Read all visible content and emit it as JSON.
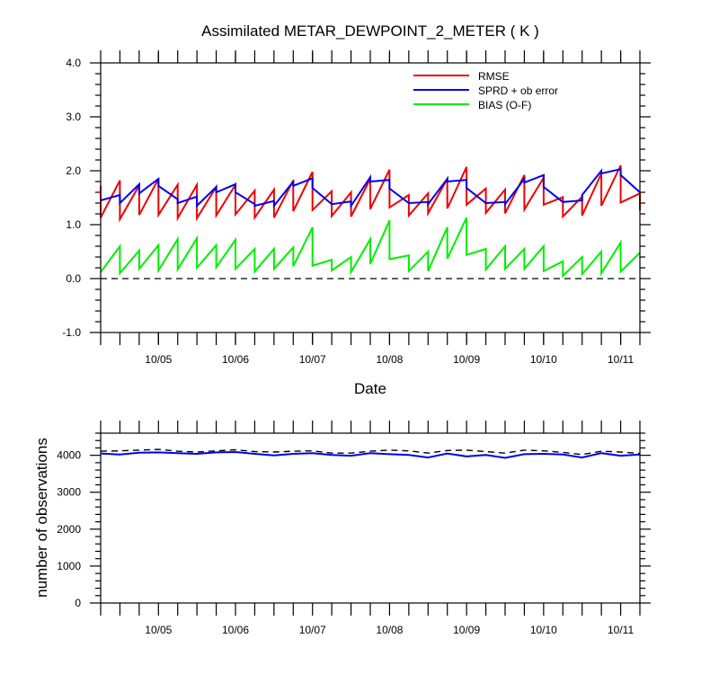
{
  "title": "Assimilated METAR_DEWPOINT_2_METER ( K )",
  "chart_data": [
    {
      "type": "line",
      "title": "Assimilated METAR_DEWPOINT_2_METER ( K )",
      "xlabel": "Date",
      "ylabel": "",
      "ylim": [
        -1.0,
        4.0
      ],
      "yticks": [
        "-1.0",
        "0.0",
        "1.0",
        "2.0",
        "3.0",
        "4.0"
      ],
      "xtick_labels": [
        "10/05",
        "10/06",
        "10/07",
        "10/08",
        "10/09",
        "10/10",
        "10/11"
      ],
      "xlim_days": [
        4.25,
        11.25
      ],
      "legend_position": "top-right",
      "reference_line": {
        "y": 0.0,
        "style": "dashed",
        "color": "#000000"
      },
      "series": [
        {
          "name": "RMSE",
          "color": "#ee0000",
          "x": [
            4.25,
            4.25,
            4.5,
            4.5,
            4.75,
            4.75,
            5.0,
            5.0,
            5.25,
            5.25,
            5.5,
            5.5,
            5.75,
            5.75,
            6.0,
            6.0,
            6.25,
            6.25,
            6.5,
            6.5,
            6.75,
            6.75,
            7.0,
            7.0,
            7.25,
            7.25,
            7.5,
            7.5,
            7.75,
            7.75,
            8.0,
            8.0,
            8.25,
            8.25,
            8.5,
            8.5,
            8.75,
            8.75,
            9.0,
            9.0,
            9.25,
            9.25,
            9.5,
            9.5,
            9.75,
            9.75,
            10.0,
            10.0,
            10.25,
            10.25,
            10.5,
            10.5,
            10.75,
            10.75,
            11.0,
            11.0,
            11.25,
            11.25
          ],
          "values": [
            1.72,
            1.13,
            1.82,
            1.1,
            1.73,
            1.18,
            1.85,
            1.18,
            1.74,
            1.12,
            1.74,
            1.12,
            1.7,
            1.17,
            1.74,
            1.19,
            1.63,
            1.13,
            1.65,
            1.13,
            1.82,
            1.25,
            1.98,
            1.27,
            1.62,
            1.16,
            1.6,
            1.15,
            1.85,
            1.29,
            2.02,
            1.32,
            1.55,
            1.17,
            1.58,
            1.21,
            1.85,
            1.3,
            2.07,
            1.37,
            1.67,
            1.22,
            1.65,
            1.21,
            1.92,
            1.28,
            1.87,
            1.37,
            1.51,
            1.15,
            1.52,
            1.17,
            1.95,
            1.35,
            2.1,
            1.41,
            1.58,
            1.26
          ]
        },
        {
          "name": "SPRD + ob error",
          "color": "#0000ee",
          "x": [
            4.25,
            4.25,
            4.5,
            4.5,
            4.75,
            4.75,
            5.0,
            5.0,
            5.25,
            5.25,
            5.5,
            5.5,
            5.75,
            5.75,
            6.0,
            6.0,
            6.25,
            6.25,
            6.5,
            6.5,
            6.75,
            6.75,
            7.0,
            7.0,
            7.25,
            7.25,
            7.5,
            7.5,
            7.75,
            7.75,
            8.0,
            8.0,
            8.25,
            8.25,
            8.5,
            8.5,
            8.75,
            8.75,
            9.0,
            9.0,
            9.25,
            9.25,
            9.5,
            9.5,
            9.75,
            9.75,
            10.0,
            10.0,
            10.25,
            10.25,
            10.5,
            10.5,
            10.75,
            10.75,
            11.0,
            11.0,
            11.25
          ],
          "values": [
            1.45,
            1.45,
            1.55,
            1.4,
            1.75,
            1.58,
            1.85,
            1.72,
            1.47,
            1.4,
            1.52,
            1.35,
            1.7,
            1.6,
            1.75,
            1.6,
            1.38,
            1.35,
            1.44,
            1.35,
            1.8,
            1.72,
            1.86,
            1.68,
            1.38,
            1.38,
            1.43,
            1.35,
            1.88,
            1.8,
            1.83,
            1.67,
            1.4,
            1.4,
            1.42,
            1.38,
            1.85,
            1.8,
            1.83,
            1.68,
            1.4,
            1.4,
            1.42,
            1.38,
            1.85,
            1.78,
            1.92,
            1.7,
            1.42,
            1.42,
            1.45,
            1.55,
            2.0,
            1.95,
            2.03,
            1.92,
            1.6
          ]
        },
        {
          "name": "BIAS (O-F)",
          "color": "#00ee00",
          "x": [
            4.25,
            4.5,
            4.5,
            4.75,
            4.75,
            5.0,
            5.0,
            5.25,
            5.25,
            5.5,
            5.5,
            5.75,
            5.75,
            6.0,
            6.0,
            6.25,
            6.25,
            6.5,
            6.5,
            6.75,
            6.75,
            7.0,
            7.0,
            7.25,
            7.25,
            7.5,
            7.5,
            7.75,
            7.75,
            8.0,
            8.0,
            8.25,
            8.25,
            8.5,
            8.5,
            8.75,
            8.75,
            9.0,
            9.0,
            9.25,
            9.25,
            9.5,
            9.5,
            9.75,
            9.75,
            10.0,
            10.0,
            10.25,
            10.25,
            10.5,
            10.5,
            10.75,
            10.75,
            11.0,
            11.0,
            11.25
          ],
          "values": [
            0.12,
            0.6,
            0.1,
            0.52,
            0.18,
            0.62,
            0.15,
            0.73,
            0.17,
            0.75,
            0.2,
            0.62,
            0.21,
            0.72,
            0.18,
            0.55,
            0.13,
            0.55,
            0.18,
            0.58,
            0.23,
            0.95,
            0.24,
            0.35,
            0.15,
            0.4,
            0.12,
            0.73,
            0.27,
            1.08,
            0.36,
            0.43,
            0.14,
            0.5,
            0.14,
            0.95,
            0.37,
            1.13,
            0.44,
            0.55,
            0.17,
            0.6,
            0.18,
            0.55,
            0.18,
            0.6,
            0.14,
            0.32,
            0.05,
            0.4,
            0.08,
            0.5,
            0.1,
            0.67,
            0.13,
            0.48
          ]
        }
      ]
    },
    {
      "type": "line",
      "title": "",
      "xlabel": "",
      "ylabel": "number of observations",
      "ylim": [
        0,
        4600
      ],
      "yticks": [
        "0",
        "1000",
        "2000",
        "3000",
        "4000"
      ],
      "xtick_labels": [
        "10/05",
        "10/06",
        "10/07",
        "10/08",
        "10/09",
        "10/10",
        "10/11"
      ],
      "xlim_days": [
        4.25,
        11.25
      ],
      "series": [
        {
          "style": "solid",
          "color": "#0000ee",
          "x": [
            4.25,
            4.5,
            4.75,
            5.0,
            5.25,
            5.5,
            5.75,
            6.0,
            6.25,
            6.5,
            6.75,
            7.0,
            7.25,
            7.5,
            7.75,
            8.0,
            8.25,
            8.5,
            8.75,
            9.0,
            9.25,
            9.5,
            9.75,
            10.0,
            10.25,
            10.5,
            10.75,
            11.0,
            11.25
          ],
          "values": [
            4050,
            4020,
            4070,
            4080,
            4060,
            4040,
            4080,
            4090,
            4040,
            4000,
            4040,
            4060,
            4010,
            3990,
            4060,
            4030,
            4010,
            3940,
            4050,
            3970,
            4010,
            3930,
            4030,
            4040,
            4020,
            3940,
            4060,
            3990,
            4020
          ]
        },
        {
          "style": "dashed",
          "color": "#000000",
          "x": [
            4.25,
            4.5,
            4.75,
            5.0,
            5.25,
            5.5,
            5.75,
            6.0,
            6.25,
            6.5,
            6.75,
            7.0,
            7.25,
            7.5,
            7.75,
            8.0,
            8.25,
            8.5,
            8.75,
            9.0,
            9.25,
            9.5,
            9.75,
            10.0,
            10.25,
            10.5,
            10.75,
            11.0,
            11.25
          ],
          "values": [
            4110,
            4120,
            4140,
            4160,
            4110,
            4090,
            4120,
            4150,
            4100,
            4090,
            4110,
            4120,
            4060,
            4060,
            4110,
            4140,
            4120,
            4060,
            4130,
            4140,
            4100,
            4060,
            4140,
            4120,
            4080,
            4020,
            4110,
            4090,
            4050
          ]
        }
      ]
    }
  ]
}
